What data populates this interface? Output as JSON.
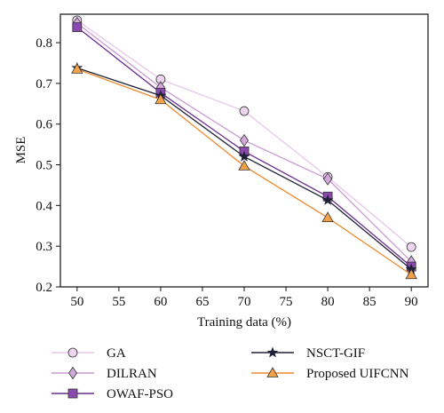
{
  "chart_data": {
    "type": "line",
    "xlabel": "Training data (%)",
    "ylabel": "MSE",
    "xlim": [
      48,
      92
    ],
    "ylim": [
      0.2,
      0.87
    ],
    "xticks": [
      50,
      55,
      60,
      65,
      70,
      75,
      80,
      85,
      90
    ],
    "yticks": [
      0.2,
      0.3,
      0.4,
      0.5,
      0.6,
      0.7,
      0.8
    ],
    "grid": false,
    "legend_position": "bottom",
    "x": [
      50,
      60,
      70,
      80,
      90
    ],
    "series": [
      {
        "name": "GA",
        "values": [
          0.855,
          0.71,
          0.632,
          0.47,
          0.298
        ],
        "color": "#e7c7e9",
        "marker": "circle",
        "marker_fill": "#efd6f0"
      },
      {
        "name": "DILRAN",
        "values": [
          0.848,
          0.69,
          0.56,
          0.465,
          0.262
        ],
        "color": "#c99bd3",
        "marker": "diamond",
        "marker_fill": "#d3a9dc"
      },
      {
        "name": "OWAF-PSO",
        "values": [
          0.838,
          0.677,
          0.533,
          0.422,
          0.25
        ],
        "color": "#6b2d8f",
        "marker": "square",
        "marker_fill": "#8a49ad"
      },
      {
        "name": "NSCT-GIF",
        "values": [
          0.738,
          0.67,
          0.52,
          0.413,
          0.243
        ],
        "color": "#1f2136",
        "marker": "star",
        "marker_fill": "#1f2136"
      },
      {
        "name": "Proposed UIFCNN",
        "values": [
          0.735,
          0.66,
          0.497,
          0.37,
          0.23
        ],
        "color": "#ee8a2e",
        "marker": "triangle",
        "marker_fill": "#f3a24a"
      }
    ]
  }
}
